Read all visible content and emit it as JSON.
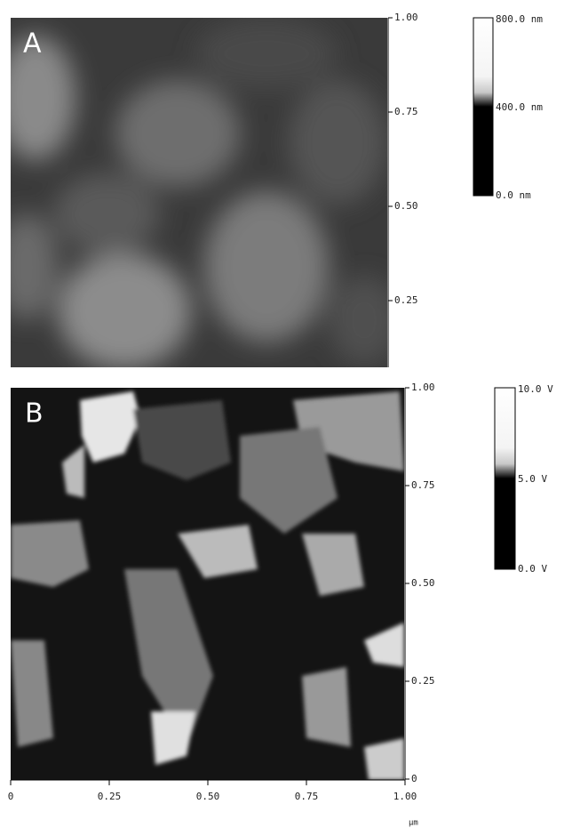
{
  "panels": [
    {
      "label": "A",
      "yticks": [
        "1.00",
        "0.75",
        "0.50",
        "0.25"
      ],
      "colorbar": [
        "800.0 nm",
        "400.0 nm",
        "0.0 nm"
      ]
    },
    {
      "label": "B",
      "yticks": [
        "1.00",
        "0.75",
        "0.50",
        "0.25",
        "0"
      ],
      "colorbar": [
        "10.0 V",
        "5.0 V",
        "0.0 V"
      ]
    }
  ],
  "xaxis": {
    "ticks": [
      "0",
      "0.25",
      "0.50",
      "0.75",
      "1.00"
    ],
    "unit": "µm"
  }
}
